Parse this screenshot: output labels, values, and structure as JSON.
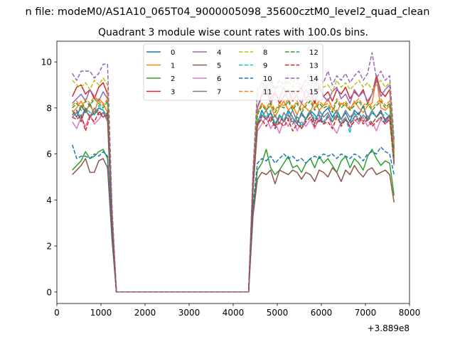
{
  "figure": {
    "suptitle": "n file: modeM0/AS1A10_065T04_9000005098_35600cztM0_level2_quad_clean",
    "title": "Quadrant 3 module wise count rates with 100.0s bins.",
    "offset_text": "+3.889e8"
  },
  "chart_data": {
    "type": "line",
    "title": "Quadrant 3 module wise count rates with 100.0s bins.",
    "xlabel": "",
    "ylabel": "",
    "x_offset": 388900000,
    "xlim": [
      0,
      8000
    ],
    "ylim": [
      -0.5,
      10.9
    ],
    "xticks": [
      0,
      1000,
      2000,
      3000,
      4000,
      5000,
      6000,
      7000,
      8000
    ],
    "yticks": [
      0,
      2,
      4,
      6,
      8,
      10
    ],
    "grid": false,
    "legend": {
      "placement": "top-center",
      "columns": 4
    },
    "x": [
      350,
      450,
      550,
      650,
      750,
      850,
      950,
      1050,
      1150,
      1250,
      1350,
      4350,
      4450,
      4550,
      4650,
      4750,
      4850,
      4950,
      5050,
      5150,
      5250,
      5350,
      5450,
      5550,
      5650,
      5750,
      5850,
      5950,
      6050,
      6150,
      6250,
      6350,
      6450,
      6550,
      6650,
      6750,
      6850,
      6950,
      7050,
      7150,
      7250,
      7350,
      7450,
      7550,
      7650
    ],
    "series": [
      {
        "name": "0",
        "color": "#1f77b4",
        "dash": "solid",
        "values": [
          7.9,
          7.6,
          8.1,
          7.8,
          8.2,
          7.7,
          8.0,
          7.9,
          7.6,
          3.0,
          0,
          0,
          4.6,
          7.3,
          7.9,
          7.5,
          7.8,
          7.2,
          7.7,
          7.4,
          7.9,
          7.6,
          7.3,
          7.8,
          7.5,
          7.9,
          7.7,
          7.4,
          7.8,
          8.0,
          7.6,
          7.9,
          7.5,
          7.8,
          7.4,
          7.9,
          7.7,
          8.1,
          7.5,
          7.8,
          7.6,
          7.9,
          7.4,
          7.7,
          5.8
        ]
      },
      {
        "name": "1",
        "color": "#ff7f0e",
        "dash": "solid",
        "values": [
          7.8,
          8.0,
          8.3,
          7.9,
          8.1,
          7.8,
          8.4,
          8.2,
          7.8,
          3.1,
          0,
          0,
          4.7,
          7.8,
          8.2,
          7.9,
          8.1,
          7.6,
          8.0,
          8.3,
          7.9,
          8.1,
          7.7,
          8.2,
          8.0,
          7.8,
          8.3,
          7.9,
          8.1,
          8.4,
          8.0,
          7.8,
          8.2,
          8.1,
          7.9,
          8.3,
          8.0,
          7.8,
          8.1,
          8.2,
          9.3,
          8.0,
          7.9,
          8.1,
          5.9
        ]
      },
      {
        "name": "2",
        "color": "#2ca02c",
        "dash": "solid",
        "values": [
          5.3,
          5.5,
          5.7,
          6.1,
          5.8,
          5.9,
          6.1,
          6.2,
          5.8,
          2.5,
          0,
          0,
          3.6,
          5.3,
          5.6,
          6.2,
          5.4,
          5.1,
          5.3,
          5.6,
          5.9,
          5.4,
          5.5,
          5.2,
          5.6,
          5.8,
          5.4,
          5.9,
          5.6,
          5.8,
          5.5,
          5.2,
          5.7,
          5.9,
          5.4,
          5.8,
          5.6,
          5.3,
          5.9,
          6.2,
          5.8,
          5.5,
          5.7,
          5.6,
          4.2
        ]
      },
      {
        "name": "3",
        "color": "#d62728",
        "dash": "solid",
        "values": [
          8.5,
          8.9,
          9.0,
          8.6,
          8.8,
          8.4,
          8.9,
          9.1,
          8.6,
          3.5,
          0,
          0,
          5.0,
          8.0,
          8.6,
          8.9,
          8.4,
          8.7,
          8.2,
          8.5,
          8.8,
          8.3,
          8.6,
          8.9,
          8.4,
          8.7,
          8.2,
          8.9,
          8.5,
          8.7,
          8.3,
          8.8,
          8.6,
          8.9,
          8.4,
          8.7,
          8.5,
          8.8,
          8.2,
          8.6,
          9.4,
          8.7,
          8.5,
          8.8,
          6.2
        ]
      },
      {
        "name": "4",
        "color": "#9467bd",
        "dash": "solid",
        "values": [
          8.2,
          8.4,
          8.6,
          8.3,
          8.8,
          8.5,
          8.3,
          8.7,
          8.4,
          3.3,
          0,
          0,
          4.9,
          8.0,
          8.5,
          8.8,
          8.2,
          8.6,
          8.4,
          8.9,
          8.3,
          8.7,
          8.5,
          8.2,
          8.8,
          8.4,
          8.6,
          9.0,
          8.5,
          8.3,
          8.7,
          8.9,
          8.4,
          8.6,
          8.2,
          8.8,
          8.5,
          8.7,
          8.3,
          8.6,
          9.2,
          8.5,
          8.8,
          9.0,
          6.3
        ]
      },
      {
        "name": "5",
        "color": "#8c564b",
        "dash": "solid",
        "values": [
          5.1,
          5.3,
          5.5,
          5.8,
          5.2,
          5.2,
          5.7,
          5.8,
          5.4,
          2.3,
          0,
          0,
          3.3,
          4.9,
          5.2,
          5.1,
          5.3,
          4.7,
          5.3,
          5.2,
          5.1,
          5.3,
          5.2,
          4.9,
          5.2,
          5.1,
          4.8,
          5.3,
          5.2,
          5.0,
          5.4,
          5.2,
          4.8,
          5.3,
          5.1,
          5.5,
          5.2,
          5.0,
          5.3,
          5.4,
          5.1,
          5.2,
          5.3,
          5.1,
          3.9
        ]
      },
      {
        "name": "6",
        "color": "#e377c2",
        "dash": "solid",
        "values": [
          7.4,
          7.1,
          7.6,
          7.2,
          7.7,
          7.3,
          7.5,
          7.8,
          7.4,
          2.9,
          0,
          0,
          4.4,
          7.0,
          7.3,
          7.6,
          7.1,
          7.4,
          6.9,
          7.5,
          7.2,
          7.6,
          7.0,
          7.4,
          7.2,
          7.5,
          7.1,
          7.6,
          7.3,
          7.7,
          7.2,
          6.9,
          7.4,
          7.6,
          7.1,
          7.5,
          7.3,
          7.6,
          7.2,
          7.4,
          7.0,
          7.5,
          7.3,
          7.6,
          5.6
        ]
      },
      {
        "name": "7",
        "color": "#7f7f7f",
        "dash": "solid",
        "values": [
          7.6,
          7.8,
          7.5,
          7.9,
          7.6,
          8.0,
          7.7,
          7.8,
          7.5,
          3.0,
          0,
          0,
          4.5,
          7.2,
          7.6,
          7.9,
          7.4,
          7.7,
          7.3,
          7.8,
          7.5,
          7.9,
          7.4,
          7.7,
          7.5,
          7.8,
          7.3,
          7.9,
          7.6,
          7.8,
          7.4,
          7.7,
          7.5,
          7.9,
          7.6,
          7.8,
          7.4,
          7.7,
          7.5,
          7.9,
          7.6,
          7.8,
          7.5,
          7.7,
          5.7
        ]
      },
      {
        "name": "8",
        "color": "#bcbd22",
        "dash": "dash",
        "values": [
          9.2,
          9.0,
          8.9,
          9.1,
          8.8,
          9.2,
          9.0,
          9.3,
          9.0,
          3.6,
          0,
          0,
          5.2,
          8.6,
          9.0,
          8.8,
          9.1,
          8.7,
          9.0,
          8.8,
          9.2,
          8.9,
          9.1,
          8.7,
          9.0,
          9.2,
          8.8,
          9.1,
          8.9,
          9.0,
          8.7,
          9.2,
          8.9,
          9.1,
          8.8,
          9.0,
          9.2,
          8.9,
          9.1,
          8.8,
          9.0,
          9.2,
          8.9,
          9.1,
          6.5
        ]
      },
      {
        "name": "9",
        "color": "#17becf",
        "dash": "dash",
        "values": [
          7.7,
          7.9,
          7.6,
          8.0,
          7.8,
          7.7,
          8.1,
          7.9,
          7.6,
          3.0,
          0,
          0,
          4.6,
          7.4,
          7.8,
          7.6,
          7.9,
          7.3,
          7.7,
          7.5,
          7.8,
          7.4,
          7.7,
          7.2,
          7.6,
          7.9,
          7.5,
          7.8,
          7.4,
          7.7,
          7.5,
          7.8,
          7.3,
          7.6,
          6.9,
          7.8,
          7.5,
          7.7,
          7.4,
          7.8,
          7.6,
          7.5,
          7.8,
          7.6,
          5.6
        ]
      },
      {
        "name": "10",
        "color": "#1f77b4",
        "dash": "dash",
        "values": [
          6.4,
          5.8,
          5.9,
          5.9,
          5.8,
          6.0,
          5.9,
          6.1,
          5.9,
          2.4,
          0,
          0,
          3.8,
          5.6,
          5.8,
          5.7,
          5.9,
          5.6,
          5.8,
          6.0,
          5.8,
          5.9,
          5.7,
          5.8,
          5.6,
          5.8,
          5.9,
          5.8,
          6.0,
          5.9,
          6.0,
          5.8,
          6.0,
          5.9,
          5.8,
          6.0,
          5.9,
          5.7,
          6.0,
          6.1,
          6.0,
          6.3,
          6.1,
          6.0,
          5.1
        ]
      },
      {
        "name": "11",
        "color": "#ff7f0e",
        "dash": "dash",
        "values": [
          8.1,
          8.3,
          8.0,
          8.4,
          8.2,
          8.5,
          8.3,
          8.1,
          8.4,
          3.2,
          0,
          0,
          4.8,
          7.8,
          8.2,
          8.0,
          8.3,
          7.9,
          8.2,
          8.1,
          8.4,
          8.0,
          8.3,
          7.9,
          8.2,
          8.4,
          8.0,
          8.3,
          8.1,
          8.2,
          7.9,
          8.4,
          8.1,
          8.3,
          8.0,
          8.2,
          8.4,
          8.1,
          8.3,
          8.0,
          8.2,
          8.4,
          8.1,
          8.3,
          6.0
        ]
      },
      {
        "name": "12",
        "color": "#2ca02c",
        "dash": "dash",
        "values": [
          8.0,
          8.2,
          7.9,
          8.3,
          8.1,
          8.4,
          8.2,
          8.0,
          8.3,
          3.2,
          0,
          0,
          4.7,
          7.7,
          8.1,
          7.9,
          8.2,
          7.8,
          8.1,
          8.0,
          8.3,
          7.9,
          8.2,
          7.8,
          8.1,
          8.3,
          7.9,
          8.2,
          8.0,
          8.1,
          7.8,
          8.3,
          8.0,
          8.2,
          7.9,
          8.1,
          8.3,
          8.0,
          8.2,
          7.9,
          8.1,
          8.3,
          8.0,
          8.2,
          5.9
        ]
      },
      {
        "name": "13",
        "color": "#d62728",
        "dash": "dash",
        "values": [
          7.6,
          7.5,
          7.7,
          7.0,
          7.6,
          7.4,
          7.8,
          7.6,
          7.7,
          3.0,
          0,
          0,
          4.5,
          7.3,
          7.5,
          7.2,
          7.6,
          7.1,
          7.4,
          7.2,
          7.5,
          7.0,
          7.3,
          7.1,
          7.4,
          7.6,
          7.2,
          7.5,
          7.3,
          7.4,
          7.1,
          7.6,
          7.3,
          7.5,
          7.2,
          7.4,
          7.6,
          7.3,
          7.5,
          7.2,
          7.4,
          7.6,
          7.3,
          7.5,
          5.5
        ]
      },
      {
        "name": "14",
        "color": "#9467bd",
        "dash": "dash",
        "values": [
          9.5,
          9.2,
          9.6,
          9.6,
          9.6,
          9.3,
          9.5,
          9.9,
          9.9,
          3.8,
          0,
          0,
          5.3,
          8.8,
          9.1,
          8.9,
          9.3,
          8.8,
          9.2,
          9.0,
          9.4,
          9.1,
          9.3,
          8.9,
          9.2,
          9.5,
          9.0,
          9.3,
          9.1,
          9.6,
          9.0,
          9.4,
          9.2,
          9.5,
          9.1,
          9.4,
          9.6,
          9.2,
          9.5,
          10.4,
          9.3,
          9.6,
          9.2,
          9.4,
          6.6
        ]
      },
      {
        "name": "15",
        "color": "#8c564b",
        "dash": "dash",
        "values": [
          7.7,
          7.9,
          7.4,
          8.0,
          7.6,
          7.8,
          7.9,
          7.6,
          7.8,
          3.0,
          0,
          0,
          4.6,
          7.3,
          7.7,
          7.5,
          7.8,
          7.2,
          7.6,
          7.4,
          7.7,
          7.3,
          7.6,
          7.1,
          7.5,
          7.8,
          7.4,
          7.7,
          7.3,
          7.6,
          7.4,
          7.7,
          7.2,
          7.5,
          7.3,
          7.6,
          7.8,
          7.4,
          7.7,
          7.3,
          7.6,
          7.8,
          7.5,
          7.7,
          5.5
        ]
      }
    ]
  }
}
